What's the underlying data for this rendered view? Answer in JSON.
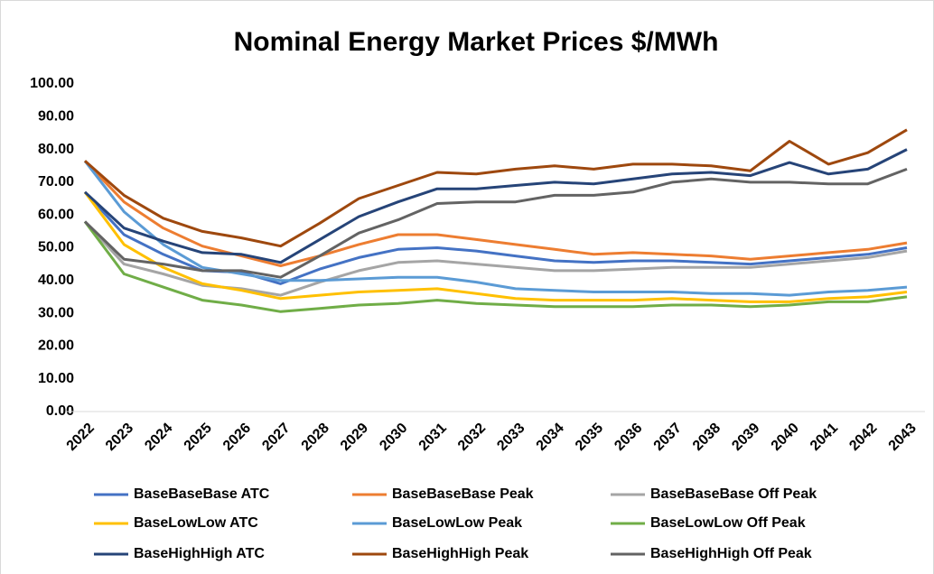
{
  "chart_data": {
    "type": "line",
    "title": "Nominal Energy Market Prices $/MWh",
    "categories": [
      "2022",
      "2023",
      "2024",
      "2025",
      "2026",
      "2027",
      "2028",
      "2029",
      "2030",
      "2031",
      "2032",
      "2033",
      "2034",
      "2035",
      "2036",
      "2037",
      "2038",
      "2039",
      "2040",
      "2041",
      "2042",
      "2043"
    ],
    "series": [
      {
        "name": "BaseBaseBase ATC",
        "color": "#4472c4",
        "values": [
          67,
          54,
          48,
          43,
          42.5,
          39,
          43.5,
          47,
          49.5,
          50,
          49,
          47.5,
          46,
          45.5,
          46,
          46,
          45.5,
          45,
          46,
          47,
          48,
          50
        ]
      },
      {
        "name": "BaseBaseBase Peak",
        "color": "#ed7d31",
        "values": [
          76.5,
          64,
          56,
          50.5,
          47.5,
          44.5,
          47.5,
          51,
          54,
          54,
          52.5,
          51,
          49.5,
          48,
          48.5,
          48,
          47.5,
          46.5,
          47.5,
          48.5,
          49.5,
          51.5
        ]
      },
      {
        "name": "BaseBaseBase Off Peak",
        "color": "#a5a5a5",
        "values": [
          58,
          45,
          42,
          38.5,
          37.5,
          35.5,
          39.5,
          43,
          45.5,
          46,
          45,
          44,
          43,
          43,
          43.5,
          44,
          44,
          44,
          45,
          46,
          47,
          49
        ]
      },
      {
        "name": "BaseLowLow ATC",
        "color": "#ffc000",
        "values": [
          67,
          51,
          44,
          39,
          37,
          34.5,
          35.5,
          36.5,
          37,
          37.5,
          36,
          34.5,
          34,
          34,
          34,
          34.5,
          34,
          33.5,
          33.5,
          34.5,
          35,
          36.5
        ]
      },
      {
        "name": "BaseLowLow Peak",
        "color": "#5b9bd5",
        "values": [
          76.5,
          61,
          51,
          44,
          42,
          40,
          40,
          40.5,
          41,
          41,
          39.5,
          37.5,
          37,
          36.5,
          36.5,
          36.5,
          36,
          36,
          35.5,
          36.5,
          37,
          38
        ]
      },
      {
        "name": "BaseLowLow Off Peak",
        "color": "#70ad47",
        "values": [
          58,
          42,
          38,
          34,
          32.5,
          30.5,
          31.5,
          32.5,
          33,
          34,
          33,
          32.5,
          32,
          32,
          32,
          32.5,
          32.5,
          32,
          32.5,
          33.5,
          33.5,
          35
        ]
      },
      {
        "name": "BaseHighHigh ATC",
        "color": "#264478",
        "values": [
          67,
          56,
          52,
          48.5,
          48,
          45.5,
          52.5,
          59.5,
          64,
          68,
          68,
          69,
          70,
          69.5,
          71,
          72.5,
          73,
          72,
          76,
          72.5,
          74,
          80
        ]
      },
      {
        "name": "BaseHighHigh Peak",
        "color": "#9e480e",
        "values": [
          76.5,
          66,
          59,
          55,
          53,
          50.5,
          57.5,
          65,
          69,
          73,
          72.5,
          74,
          75,
          74,
          75.5,
          75.5,
          75,
          73.5,
          82.5,
          75.5,
          79,
          86
        ]
      },
      {
        "name": "BaseHighHigh Off Peak",
        "color": "#636363",
        "values": [
          58,
          46.5,
          45,
          43,
          43,
          41,
          47.5,
          54.5,
          58.5,
          63.5,
          64,
          64,
          66,
          66,
          67,
          70,
          71,
          70,
          70,
          69.5,
          69.5,
          74
        ]
      }
    ],
    "ylim": [
      0,
      100
    ],
    "yticks": [
      {
        "value": 0,
        "label": "0.00"
      },
      {
        "value": 10,
        "label": "10.00"
      },
      {
        "value": 20,
        "label": "20.00"
      },
      {
        "value": 30,
        "label": "30.00"
      },
      {
        "value": 40,
        "label": "40.00"
      },
      {
        "value": 50,
        "label": "50.00"
      },
      {
        "value": 60,
        "label": "60.00"
      },
      {
        "value": 70,
        "label": "70.00"
      },
      {
        "value": 80,
        "label": "80.00"
      },
      {
        "value": 90,
        "label": "90.00"
      },
      {
        "value": 100,
        "label": "100.00"
      }
    ],
    "grid": false
  }
}
